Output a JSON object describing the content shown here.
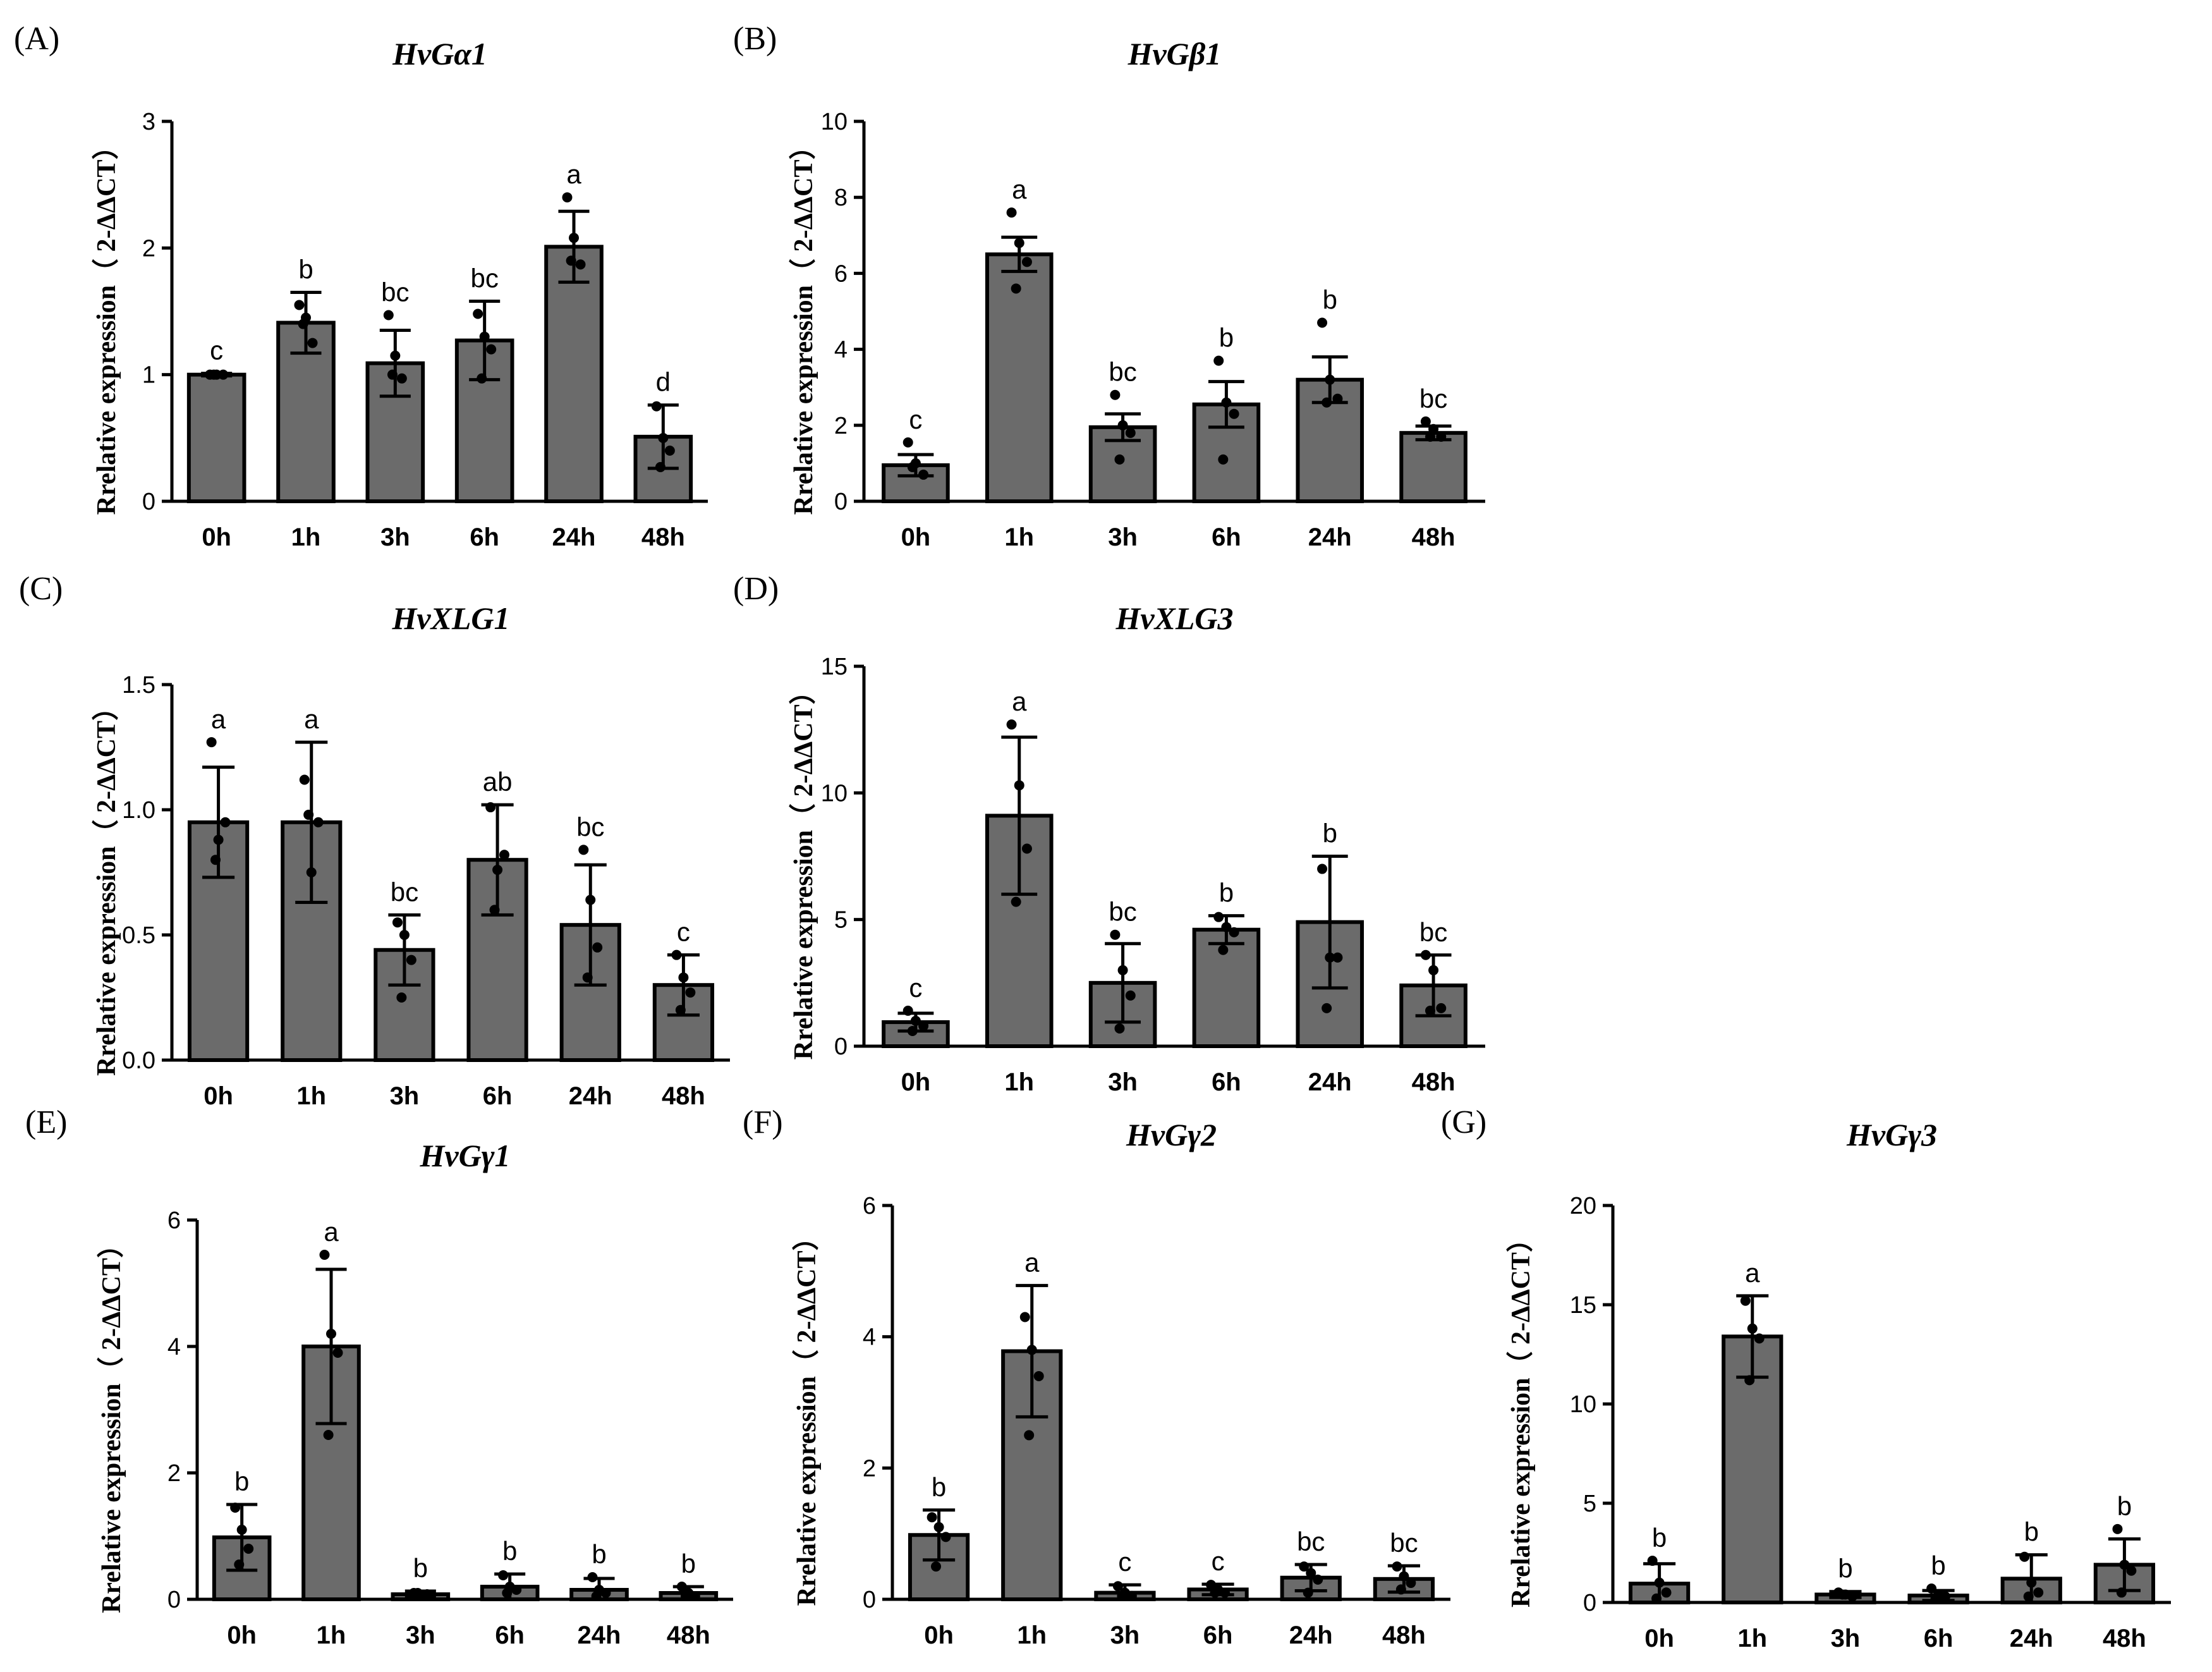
{
  "chart_data": [
    {
      "type": "bar",
      "panel": "(A)",
      "title": "HvGα1",
      "ylabel": "Rrelative expression（ 2-ΔΔCT）",
      "categories": [
        "0h",
        "1h",
        "3h",
        "6h",
        "24h",
        "48h"
      ],
      "values": [
        1.0,
        1.41,
        1.09,
        1.27,
        2.01,
        0.51
      ],
      "errors": [
        0.01,
        0.24,
        0.26,
        0.31,
        0.28,
        0.25
      ],
      "points": [
        [
          1.0,
          1.0,
          1.0,
          1.0
        ],
        [
          1.55,
          1.45,
          1.25,
          1.4
        ],
        [
          1.47,
          1.15,
          0.97,
          1.0
        ],
        [
          1.48,
          1.3,
          1.2,
          0.97
        ],
        [
          2.4,
          2.08,
          1.87,
          1.9
        ],
        [
          0.75,
          0.5,
          0.4,
          0.27
        ]
      ],
      "letters": [
        "c",
        "b",
        "bc",
        "bc",
        "a",
        "d"
      ],
      "ylim": [
        0,
        3
      ],
      "yticks": [
        0,
        1,
        2,
        3
      ],
      "ytick_labels": [
        "0",
        "1",
        "2",
        "3"
      ]
    },
    {
      "type": "bar",
      "panel": "(B)",
      "title": "HvGβ1",
      "ylabel": "Rrelative expression（ 2-ΔΔCT）",
      "categories": [
        "0h",
        "1h",
        "3h",
        "6h",
        "24h",
        "48h"
      ],
      "values": [
        0.95,
        6.5,
        1.95,
        2.55,
        3.2,
        1.8
      ],
      "errors": [
        0.28,
        0.45,
        0.35,
        0.6,
        0.6,
        0.18
      ],
      "points": [
        [
          1.55,
          1.0,
          0.7,
          0.9
        ],
        [
          7.6,
          6.8,
          6.3,
          5.6
        ],
        [
          2.8,
          2.0,
          1.8,
          1.1
        ],
        [
          3.7,
          2.6,
          2.3,
          1.1
        ],
        [
          4.7,
          3.2,
          2.7,
          2.6
        ],
        [
          2.1,
          1.9,
          1.7,
          1.7
        ]
      ],
      "letters": [
        "c",
        "a",
        "bc",
        "b",
        "b",
        "bc"
      ],
      "ylim": [
        0,
        10
      ],
      "yticks": [
        0,
        2,
        4,
        6,
        8,
        10
      ],
      "ytick_labels": [
        "0",
        "2",
        "4",
        "6",
        "8",
        "10"
      ]
    },
    {
      "type": "bar",
      "panel": "(C)",
      "title": "HvXLG1",
      "ylabel": "Rrelative expression（ 2-ΔΔCT）",
      "categories": [
        "0h",
        "1h",
        "3h",
        "6h",
        "24h",
        "48h"
      ],
      "values": [
        0.95,
        0.95,
        0.44,
        0.8,
        0.54,
        0.3
      ],
      "errors": [
        0.22,
        0.32,
        0.14,
        0.22,
        0.24,
        0.12
      ],
      "points": [
        [
          1.27,
          0.88,
          0.95,
          0.8
        ],
        [
          1.12,
          0.75,
          0.95,
          0.98
        ],
        [
          0.55,
          0.5,
          0.4,
          0.25
        ],
        [
          1.01,
          0.76,
          0.82,
          0.6
        ],
        [
          0.84,
          0.64,
          0.45,
          0.33
        ],
        [
          0.42,
          0.33,
          0.27,
          0.2
        ]
      ],
      "letters": [
        "a",
        "a",
        "bc",
        "ab",
        "bc",
        "c"
      ],
      "ylim": [
        0,
        1.5
      ],
      "yticks": [
        0,
        0.5,
        1.0,
        1.5
      ],
      "ytick_labels": [
        "0.0",
        "0.5",
        "1.0",
        "1.5"
      ]
    },
    {
      "type": "bar",
      "panel": "(D)",
      "title": "HvXLG3",
      "ylabel": "Rrelative expression（ 2-ΔΔCT）",
      "categories": [
        "0h",
        "1h",
        "3h",
        "6h",
        "24h",
        "48h"
      ],
      "values": [
        0.95,
        9.1,
        2.5,
        4.6,
        4.9,
        2.4
      ],
      "errors": [
        0.35,
        3.1,
        1.55,
        0.55,
        2.6,
        1.2
      ],
      "points": [
        [
          1.4,
          1.0,
          0.8,
          0.6
        ],
        [
          12.7,
          10.3,
          7.8,
          5.7
        ],
        [
          4.4,
          3.0,
          2.0,
          0.7
        ],
        [
          5.1,
          4.7,
          4.5,
          3.8
        ],
        [
          7.0,
          3.5,
          3.5,
          1.5
        ],
        [
          3.6,
          3.0,
          1.5,
          1.4
        ]
      ],
      "letters": [
        "c",
        "a",
        "bc",
        "b",
        "b",
        "bc"
      ],
      "ylim": [
        0,
        15
      ],
      "yticks": [
        0,
        5,
        10,
        15
      ],
      "ytick_labels": [
        "0",
        "5",
        "10",
        "15"
      ]
    },
    {
      "type": "bar",
      "panel": "(E)",
      "title": "HvGγ1",
      "ylabel": "Rrelative expression（ 2-ΔΔCT）",
      "categories": [
        "0h",
        "1h",
        "3h",
        "6h",
        "24h",
        "48h"
      ],
      "values": [
        0.98,
        4.0,
        0.08,
        0.2,
        0.15,
        0.1
      ],
      "errors": [
        0.52,
        1.22,
        0.05,
        0.2,
        0.18,
        0.1
      ],
      "points": [
        [
          1.45,
          1.1,
          0.8,
          0.55
        ],
        [
          5.45,
          4.2,
          3.9,
          2.6
        ],
        [
          0.1,
          0.05,
          0.08,
          0.1
        ],
        [
          0.38,
          0.2,
          0.15,
          0.1
        ],
        [
          0.35,
          0.15,
          0.1,
          0.05
        ],
        [
          0.2,
          0.1,
          0.05,
          0.05
        ]
      ],
      "letters": [
        "b",
        "a",
        "b",
        "b",
        "b",
        "b"
      ],
      "ylim": [
        0,
        6
      ],
      "yticks": [
        0,
        2,
        4,
        6
      ],
      "ytick_labels": [
        "0",
        "2",
        "4",
        "6"
      ]
    },
    {
      "type": "bar",
      "panel": "(F)",
      "title": "HvGγ2",
      "ylabel": "Rrelative expression（ 2-ΔΔCT）",
      "categories": [
        "0h",
        "1h",
        "3h",
        "6h",
        "24h",
        "48h"
      ],
      "values": [
        0.98,
        3.78,
        0.1,
        0.15,
        0.33,
        0.31
      ],
      "errors": [
        0.38,
        1.0,
        0.12,
        0.08,
        0.2,
        0.2
      ],
      "points": [
        [
          1.25,
          1.1,
          0.95,
          0.5
        ],
        [
          4.3,
          3.8,
          3.4,
          2.5
        ],
        [
          0.2,
          0.1,
          0.05,
          0.05
        ],
        [
          0.22,
          0.15,
          0.1,
          0.1
        ],
        [
          0.5,
          0.4,
          0.3,
          0.1
        ],
        [
          0.5,
          0.35,
          0.25,
          0.15
        ]
      ],
      "letters": [
        "b",
        "a",
        "c",
        "c",
        "bc",
        "bc"
      ],
      "ylim": [
        0,
        6
      ],
      "yticks": [
        0,
        2,
        4,
        6
      ],
      "ytick_labels": [
        "0",
        "2",
        "4",
        "6"
      ]
    },
    {
      "type": "bar",
      "panel": "(G)",
      "title": "HvGγ3",
      "ylabel": "Rrelative expression（ 2-ΔΔCT）",
      "categories": [
        "0h",
        "1h",
        "3h",
        "6h",
        "24h",
        "48h"
      ],
      "values": [
        0.95,
        13.4,
        0.4,
        0.35,
        1.2,
        1.9
      ],
      "errors": [
        1.0,
        2.05,
        0.15,
        0.25,
        1.2,
        1.3
      ],
      "points": [
        [
          2.1,
          1.0,
          0.5,
          0.2
        ],
        [
          15.2,
          13.8,
          13.3,
          11.2
        ],
        [
          0.5,
          0.4,
          0.3,
          0.4
        ],
        [
          0.7,
          0.4,
          0.3,
          0.2
        ],
        [
          2.3,
          1.0,
          0.5,
          0.3
        ],
        [
          3.7,
          1.9,
          1.6,
          0.5
        ]
      ],
      "letters": [
        "b",
        "a",
        "b",
        "b",
        "b",
        "b"
      ],
      "ylim": [
        0,
        20
      ],
      "yticks": [
        0,
        5,
        10,
        15,
        20
      ],
      "ytick_labels": [
        "0",
        "5",
        "10",
        "15",
        "20"
      ]
    }
  ]
}
